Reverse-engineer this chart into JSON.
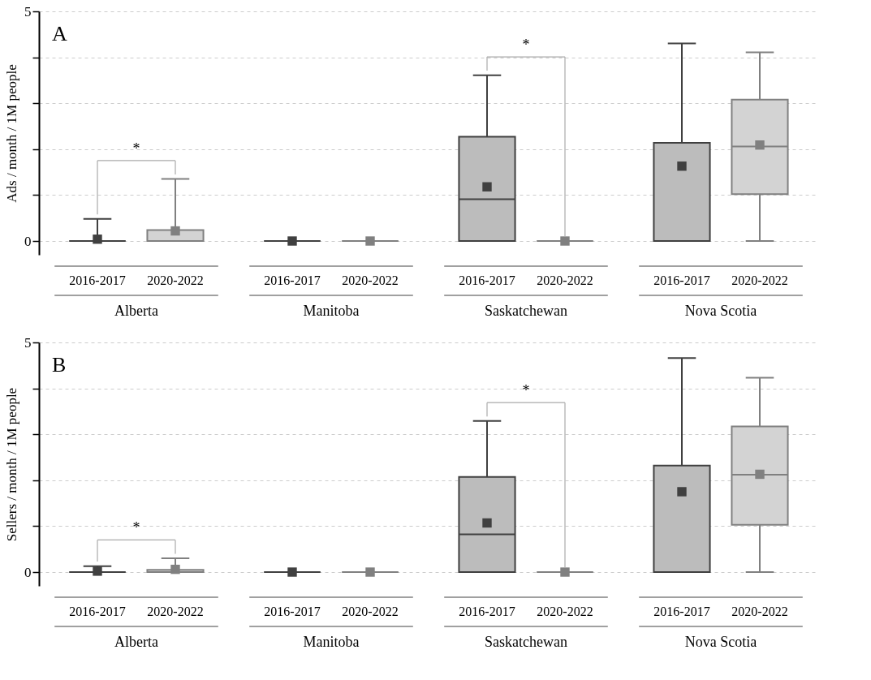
{
  "chart_data": [
    {
      "type": "box",
      "title": "A",
      "ylabel": "Ads / month / 1M people",
      "categories": [
        "Alberta",
        "Manitoba",
        "Saskatchewan",
        "Nova Scotia"
      ],
      "ylim": [
        -0.3,
        5
      ],
      "yticks": [
        0,
        {
          "value": 1,
          "label": null
        },
        {
          "value": 2,
          "label": null
        },
        {
          "value": 3,
          "label": null
        },
        {
          "value": 4,
          "label": null
        },
        5
      ],
      "grid": "y",
      "marker": "square",
      "series": [
        {
          "name": "2016-2017",
          "color": "#404040",
          "boxes": [
            {
              "low": 0,
              "q1": 0,
              "median": 0,
              "q3": 0,
              "high": 0.48,
              "mean": 0.04
            },
            {
              "low": 0,
              "q1": 0,
              "median": 0,
              "q3": 0,
              "high": 0,
              "mean": 0
            },
            {
              "low": 0,
              "q1": 0,
              "median": 0.91,
              "q3": 2.27,
              "high": 3.61,
              "mean": 1.18
            },
            {
              "low": 0,
              "q1": 0,
              "median": 0,
              "q3": 2.14,
              "high": 4.3,
              "mean": 1.63
            }
          ]
        },
        {
          "name": "2020-2022",
          "color": "#808080",
          "boxes": [
            {
              "low": 0,
              "q1": 0,
              "median": 0,
              "q3": 0.24,
              "high": 1.35,
              "mean": 0.22
            },
            {
              "low": 0,
              "q1": 0,
              "median": 0,
              "q3": 0,
              "high": 0,
              "mean": 0
            },
            {
              "low": 0,
              "q1": 0,
              "median": 0,
              "q3": 0,
              "high": 0,
              "mean": 0
            },
            {
              "low": 0,
              "q1": 1.02,
              "median": 2.06,
              "q3": 3.08,
              "high": 4.11,
              "mean": 2.09
            }
          ]
        }
      ],
      "annotations": [
        "*",
        "*"
      ]
    },
    {
      "type": "box",
      "title": "B",
      "ylabel": "Sellers / month / 1M people",
      "categories": [
        "Alberta",
        "Manitoba",
        "Saskatchewan",
        "Nova Scotia"
      ],
      "ylim": [
        -0.3,
        5
      ],
      "yticks": [
        0,
        {
          "value": 1,
          "label": null
        },
        {
          "value": 2,
          "label": null
        },
        {
          "value": 3,
          "label": null
        },
        {
          "value": 4,
          "label": null
        },
        5
      ],
      "grid": "y",
      "marker": "square",
      "series": [
        {
          "name": "2016-2017",
          "color": "#404040",
          "boxes": [
            {
              "low": 0,
              "q1": 0,
              "median": 0,
              "q3": 0,
              "high": 0.13,
              "mean": 0.02
            },
            {
              "low": 0,
              "q1": 0,
              "median": 0,
              "q3": 0,
              "high": 0,
              "mean": 0
            },
            {
              "low": 0,
              "q1": 0,
              "median": 0.82,
              "q3": 2.07,
              "high": 3.29,
              "mean": 1.07
            },
            {
              "low": 0,
              "q1": 0,
              "median": 0,
              "q3": 2.32,
              "high": 4.66,
              "mean": 1.75
            }
          ]
        },
        {
          "name": "2020-2022",
          "color": "#808080",
          "boxes": [
            {
              "low": 0,
              "q1": 0,
              "median": 0,
              "q3": 0.05,
              "high": 0.3,
              "mean": 0.06
            },
            {
              "low": 0,
              "q1": 0,
              "median": 0,
              "q3": 0,
              "high": 0,
              "mean": 0
            },
            {
              "low": 0,
              "q1": 0,
              "median": 0,
              "q3": 0,
              "high": 0,
              "mean": 0
            },
            {
              "low": 0,
              "q1": 1.03,
              "median": 2.12,
              "q3": 3.17,
              "high": 4.23,
              "mean": 2.13
            }
          ]
        }
      ],
      "annotations": [
        "*",
        "*"
      ]
    }
  ]
}
